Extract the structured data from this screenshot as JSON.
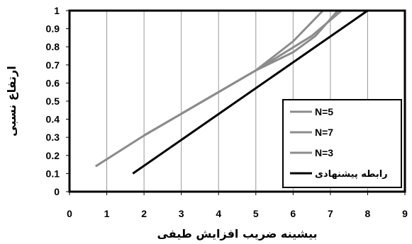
{
  "chart_data": {
    "type": "line",
    "xlabel": "بیشینه ضریب افزایش طیفی",
    "ylabel": "ارتفاع نسبی",
    "xlim": [
      0,
      9
    ],
    "ylim": [
      0,
      1
    ],
    "x_ticks": [
      "0",
      "1",
      "2",
      "3",
      "4",
      "5",
      "6",
      "7",
      "8",
      "9"
    ],
    "y_ticks": [
      "0",
      "0.1",
      "0.2",
      "0.3",
      "0.4",
      "0.5",
      "0.6",
      "0.7",
      "0.8",
      "0.9",
      "1"
    ],
    "grid": "vertical",
    "legend_position": "bottom-right",
    "series": [
      {
        "name": "N=5",
        "color": "#8c8c8c",
        "points": [
          [
            0.7,
            0.14
          ],
          [
            2.0,
            0.31
          ],
          [
            3.5,
            0.49
          ],
          [
            5.0,
            0.67
          ],
          [
            6.0,
            0.77
          ],
          [
            6.6,
            0.86
          ],
          [
            7.2,
            1.0
          ]
        ]
      },
      {
        "name": "N=7",
        "color": "#8c8c8c",
        "points": [
          [
            2.0,
            0.31
          ],
          [
            3.5,
            0.49
          ],
          [
            5.0,
            0.67
          ],
          [
            6.5,
            0.86
          ],
          [
            7.3,
            1.0
          ]
        ]
      },
      {
        "name": "N=3",
        "color": "#8c8c8c",
        "points": [
          [
            2.0,
            0.31
          ],
          [
            3.5,
            0.49
          ],
          [
            5.0,
            0.67
          ],
          [
            6.0,
            0.83
          ],
          [
            6.8,
            1.0
          ]
        ]
      },
      {
        "name": "رابطه پیشنهادی",
        "color": "#000000",
        "points": [
          [
            1.7,
            0.1
          ],
          [
            8.0,
            1.0
          ]
        ]
      }
    ]
  }
}
